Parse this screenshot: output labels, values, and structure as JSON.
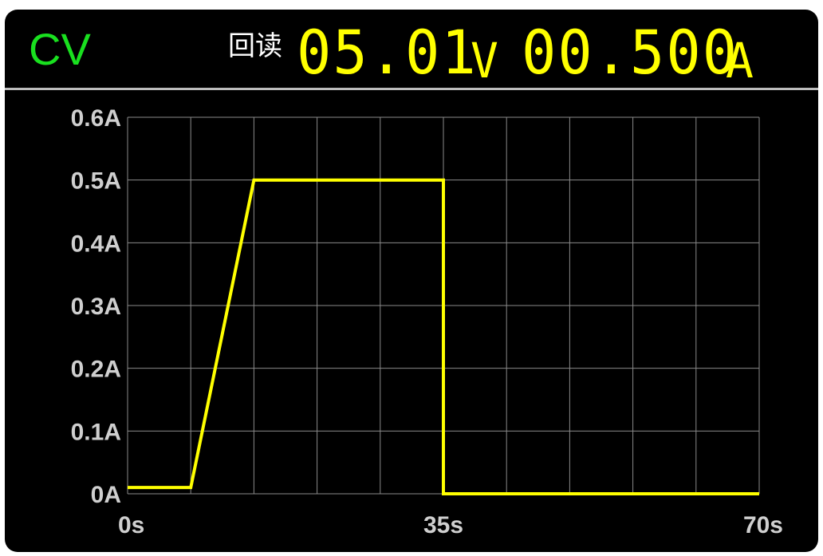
{
  "header": {
    "mode": "CV",
    "readback_label": "回读",
    "voltage_value": "05.01",
    "voltage_unit": "V",
    "current_value": "00.500",
    "current_unit": "A"
  },
  "colors": {
    "background": "#000000",
    "mode_green": "#19e01f",
    "readout_yellow": "#ffff00",
    "trace_yellow": "#ffff00",
    "grid": "#8a8a8a",
    "tick_text": "#cfcfcf"
  },
  "chart_data": {
    "type": "line",
    "title": "",
    "xlabel": "",
    "ylabel": "",
    "xlim": [
      0,
      70
    ],
    "ylim": [
      0,
      0.6
    ],
    "grid": true,
    "x_tick_labels": [
      "0s",
      "35s",
      "70s"
    ],
    "x_tick_values": [
      0,
      35,
      70
    ],
    "y_tick_labels": [
      "0A",
      "0.1A",
      "0.2A",
      "0.3A",
      "0.4A",
      "0.5A",
      "0.6A"
    ],
    "y_tick_values": [
      0,
      0.1,
      0.2,
      0.3,
      0.4,
      0.5,
      0.6
    ],
    "series": [
      {
        "x": [
          0,
          7,
          14,
          35,
          35,
          70
        ],
        "y": [
          0.01,
          0.01,
          0.5,
          0.5,
          0,
          0
        ]
      }
    ]
  }
}
